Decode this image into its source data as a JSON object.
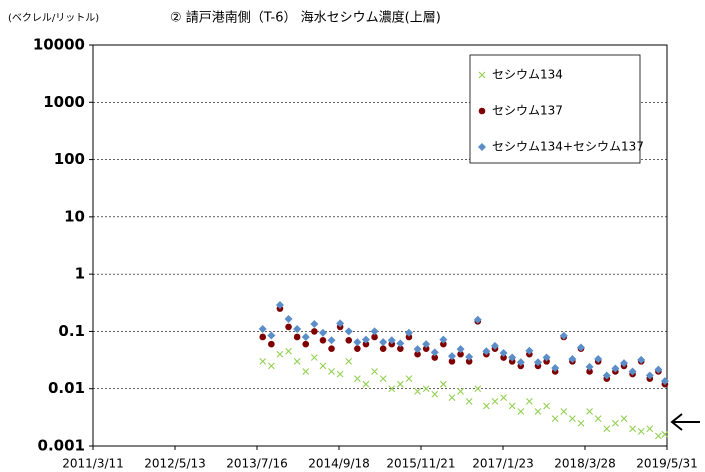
{
  "chart_data": {
    "type": "scatter",
    "title": "② 請戸港南側（T-6） 海水セシウム濃度(上層)",
    "y_label": "(ベクレル/リットル)",
    "log_y": true,
    "grid": true,
    "legend": "upper-right",
    "xlim": [
      "2011/3/11",
      "2019/5/31"
    ],
    "xticks": [
      "2011/3/11",
      "2012/5/13",
      "2013/7/16",
      "2014/9/18",
      "2015/11/21",
      "2017/1/23",
      "2018/3/28",
      "2019/5/31"
    ],
    "ylim": [
      0.001,
      10000
    ],
    "yticks": [
      0.001,
      0.01,
      0.1,
      1,
      10,
      100,
      1000,
      10000
    ],
    "x": [
      "2013/8/15",
      "2013/9/29",
      "2013/11/13",
      "2013/12/28",
      "2014/2/11",
      "2014/3/28",
      "2014/5/12",
      "2014/6/26",
      "2014/8/10",
      "2014/9/24",
      "2014/11/8",
      "2014/12/23",
      "2015/2/6",
      "2015/3/23",
      "2015/5/7",
      "2015/6/21",
      "2015/8/5",
      "2015/9/19",
      "2015/11/3",
      "2015/12/18",
      "2016/2/1",
      "2016/3/17",
      "2016/5/1",
      "2016/6/15",
      "2016/7/30",
      "2016/9/13",
      "2016/10/28",
      "2016/12/12",
      "2017/1/26",
      "2017/3/12",
      "2017/4/26",
      "2017/6/10",
      "2017/7/25",
      "2017/9/8",
      "2017/10/23",
      "2017/12/7",
      "2018/1/21",
      "2018/3/7",
      "2018/4/21",
      "2018/6/5",
      "2018/7/20",
      "2018/9/3",
      "2018/10/18",
      "2018/12/2",
      "2019/1/16",
      "2019/3/2",
      "2019/4/16",
      "2019/5/20"
    ],
    "series": [
      {
        "name": "セシウム134",
        "color": "#92d050",
        "marker": "x",
        "values": [
          0.03,
          0.025,
          0.04,
          0.045,
          0.03,
          0.02,
          0.035,
          0.025,
          0.02,
          0.018,
          0.03,
          0.015,
          0.012,
          0.02,
          0.015,
          0.01,
          0.012,
          0.015,
          0.009,
          0.01,
          0.008,
          0.012,
          0.007,
          0.009,
          0.006,
          0.01,
          0.005,
          0.006,
          0.007,
          0.005,
          0.004,
          0.006,
          0.004,
          0.005,
          0.003,
          0.004,
          0.003,
          0.0025,
          0.004,
          0.003,
          0.002,
          0.0025,
          0.003,
          0.002,
          0.0018,
          0.002,
          0.0015,
          0.0016
        ]
      },
      {
        "name": "セシウム137",
        "color": "#7f0000",
        "marker": "circle",
        "values": [
          0.08,
          0.06,
          0.25,
          0.12,
          0.08,
          0.06,
          0.1,
          0.07,
          0.05,
          0.12,
          0.07,
          0.05,
          0.06,
          0.08,
          0.05,
          0.06,
          0.05,
          0.08,
          0.04,
          0.05,
          0.035,
          0.06,
          0.03,
          0.04,
          0.03,
          0.15,
          0.04,
          0.05,
          0.035,
          0.03,
          0.025,
          0.04,
          0.025,
          0.03,
          0.02,
          0.08,
          0.03,
          0.05,
          0.02,
          0.03,
          0.015,
          0.02,
          0.025,
          0.018,
          0.03,
          0.015,
          0.02,
          0.012
        ]
      },
      {
        "name": "セシウム134+セシウム137",
        "color": "#5b8ec8",
        "marker": "diamond",
        "values": [
          0.11,
          0.085,
          0.29,
          0.165,
          0.11,
          0.08,
          0.135,
          0.095,
          0.07,
          0.138,
          0.1,
          0.065,
          0.072,
          0.1,
          0.065,
          0.07,
          0.062,
          0.095,
          0.049,
          0.06,
          0.043,
          0.072,
          0.037,
          0.049,
          0.036,
          0.16,
          0.045,
          0.056,
          0.042,
          0.035,
          0.029,
          0.046,
          0.029,
          0.035,
          0.023,
          0.084,
          0.033,
          0.0525,
          0.024,
          0.033,
          0.017,
          0.0225,
          0.028,
          0.02,
          0.0318,
          0.017,
          0.0215,
          0.0136
        ]
      }
    ]
  }
}
